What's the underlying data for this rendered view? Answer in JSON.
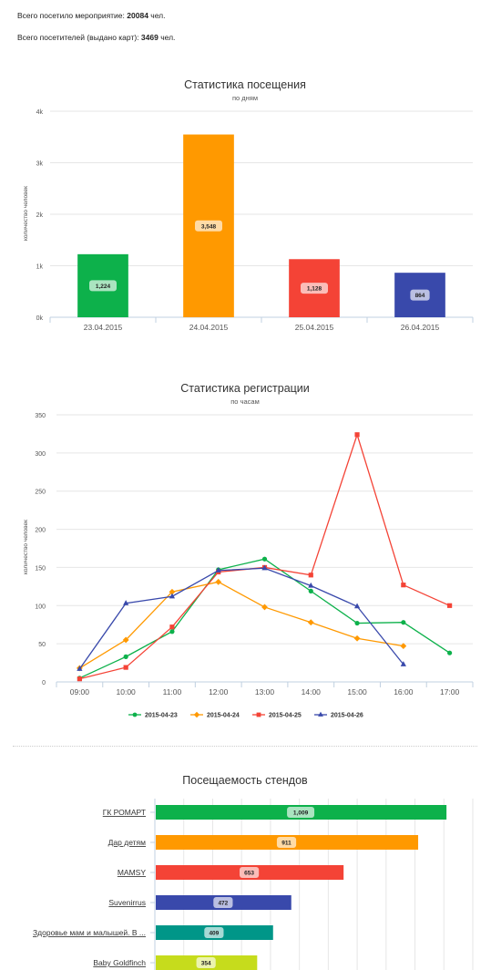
{
  "summary": {
    "line1_label": "Всего посетило мероприятие:",
    "line1_value": "20084",
    "line1_unit": "чел.",
    "line2_label": "Всего посетителей (выдано карт):",
    "line2_value": "3469",
    "line2_unit": "чел."
  },
  "chart_data": [
    {
      "type": "bar",
      "title": "Статистика посещения",
      "subtitle": "по дням",
      "ylabel": "количество человек",
      "xlabel": "",
      "ylim": [
        0,
        4000
      ],
      "ytick_labels": [
        "0k",
        "1k",
        "2k",
        "3k",
        "4k"
      ],
      "categories": [
        "23.04.2015",
        "24.04.2015",
        "25.04.2015",
        "26.04.2015"
      ],
      "values": [
        1224,
        3548,
        1128,
        864
      ],
      "data_labels": [
        "1,224",
        "3,548",
        "1,128",
        "864"
      ],
      "colors": [
        "#0db14b",
        "#ff9900",
        "#f44336",
        "#3949ab"
      ],
      "grid": true,
      "legend": "none"
    },
    {
      "type": "line",
      "title": "Статистика регистрации",
      "subtitle": "по часам",
      "ylabel": "количество человек",
      "xlabel": "",
      "ylim": [
        0,
        350
      ],
      "yticks": [
        0,
        50,
        100,
        150,
        200,
        250,
        300,
        350
      ],
      "categories": [
        "09:00",
        "10:00",
        "11:00",
        "12:00",
        "13:00",
        "14:00",
        "15:00",
        "16:00",
        "17:00"
      ],
      "series": [
        {
          "name": "2015-04-23",
          "color": "#0db14b",
          "marker": "circle",
          "values": [
            5,
            33,
            66,
            147,
            161,
            119,
            77,
            78,
            38
          ]
        },
        {
          "name": "2015-04-24",
          "color": "#ff9900",
          "marker": "diamond",
          "values": [
            18,
            55,
            118,
            131,
            98,
            78,
            57,
            47,
            null
          ]
        },
        {
          "name": "2015-04-25",
          "color": "#f44336",
          "marker": "square",
          "values": [
            4,
            19,
            72,
            144,
            150,
            140,
            324,
            127,
            100
          ]
        },
        {
          "name": "2015-04-26",
          "color": "#3949ab",
          "marker": "triangle",
          "values": [
            17,
            103,
            112,
            146,
            149,
            126,
            99,
            23,
            null
          ]
        }
      ],
      "grid": true,
      "legend": "bottom"
    },
    {
      "type": "bar",
      "orientation": "horizontal",
      "title": "Посещаемость стендов",
      "subtitle": "",
      "xlim": [
        0,
        1100
      ],
      "categories": [
        "ГК РОМАРТ",
        "Дар детям",
        "MAMSY",
        "Suvenirrus",
        "Здоровье мам и малышей. В ...",
        "Baby Goldfinch"
      ],
      "values": [
        1009,
        911,
        653,
        472,
        409,
        354
      ],
      "data_labels": [
        "1,009",
        "911",
        "653",
        "472",
        "409",
        "354"
      ],
      "colors": [
        "#0db14b",
        "#ff9900",
        "#f44336",
        "#3949ab",
        "#009688",
        "#c6dc1c"
      ],
      "grid": true,
      "legend": "none"
    }
  ]
}
